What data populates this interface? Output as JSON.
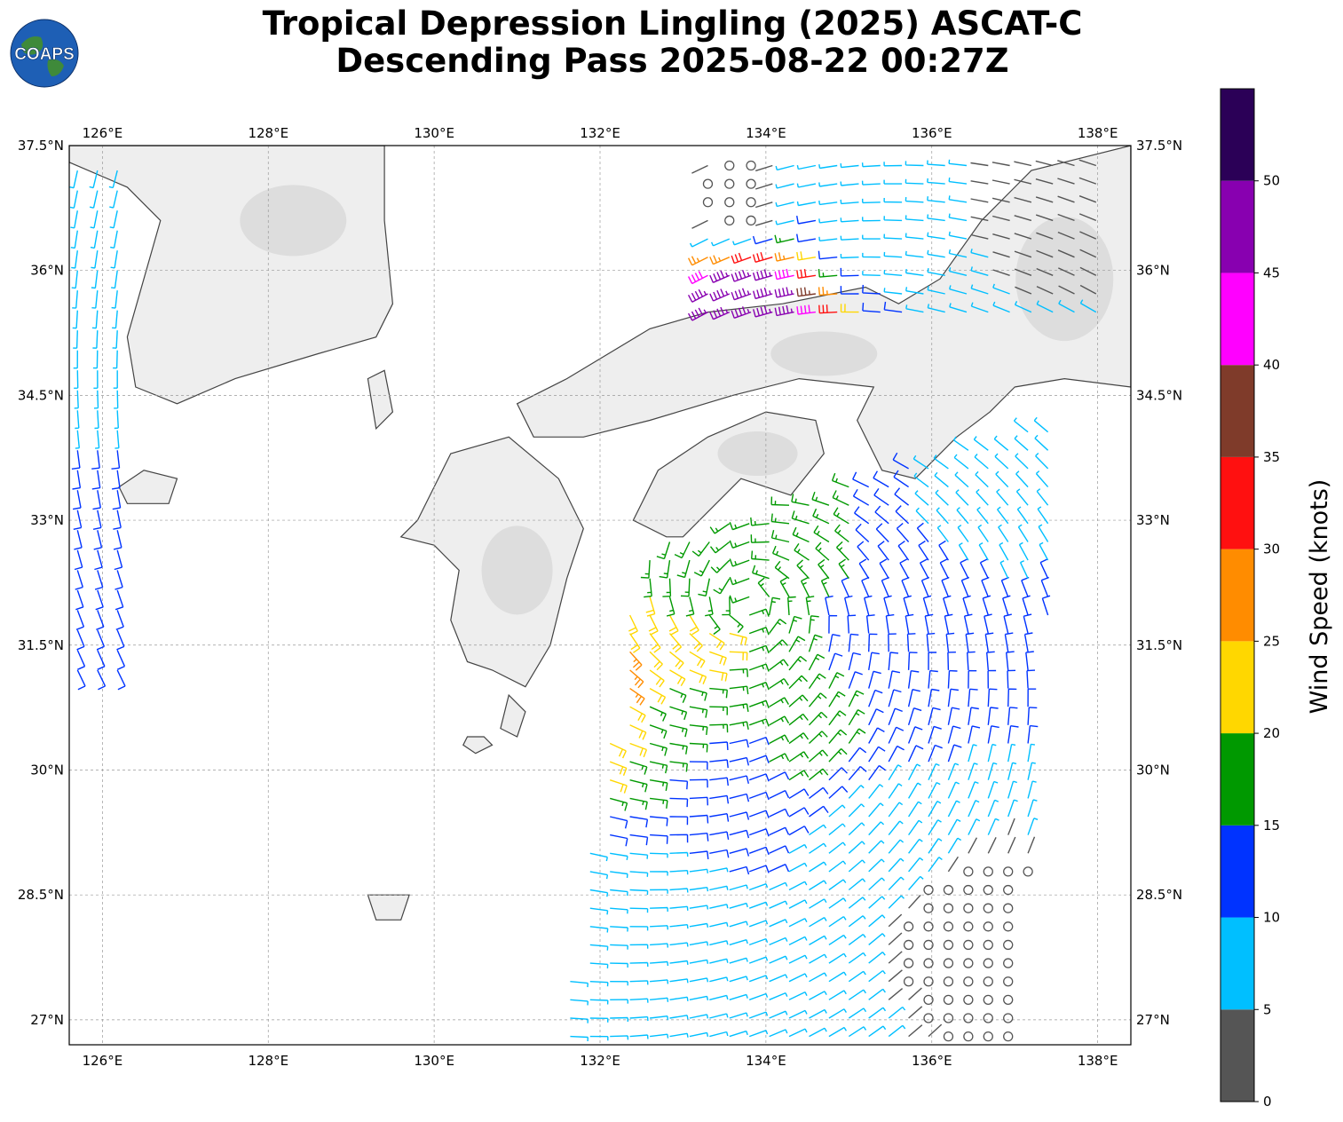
{
  "title": {
    "line1": "Tropical Depression Lingling (2025) ASCAT-C",
    "line2": "Descending Pass 2025-08-22 00:27Z"
  },
  "logo": {
    "text": "COAPS",
    "icon": "globe-icon"
  },
  "map": {
    "lon_range": [
      125.6,
      138.4
    ],
    "lat_range": [
      26.7,
      37.5
    ],
    "lon_ticks": [
      {
        "value": 126,
        "label": "126°E"
      },
      {
        "value": 128,
        "label": "128°E"
      },
      {
        "value": 130,
        "label": "130°E"
      },
      {
        "value": 132,
        "label": "132°E"
      },
      {
        "value": 134,
        "label": "134°E"
      },
      {
        "value": 136,
        "label": "136°E"
      },
      {
        "value": 138,
        "label": "138°E"
      }
    ],
    "lat_ticks": [
      {
        "value": 37.5,
        "label": "37.5°N"
      },
      {
        "value": 36,
        "label": "36°N"
      },
      {
        "value": 34.5,
        "label": "34.5°N"
      },
      {
        "value": 33,
        "label": "33°N"
      },
      {
        "value": 31.5,
        "label": "31.5°N"
      },
      {
        "value": 30,
        "label": "30°N"
      },
      {
        "value": 28.5,
        "label": "28.5°N"
      },
      {
        "value": 27,
        "label": "27°N"
      }
    ],
    "gridlines": true,
    "land_color": "#eeeeee",
    "coast_color": "#444444"
  },
  "colorbar": {
    "label": "Wind Speed (knots)",
    "bins": [
      {
        "min": 0,
        "max": 5,
        "color": "#555555"
      },
      {
        "min": 5,
        "max": 10,
        "color": "#00bfff"
      },
      {
        "min": 10,
        "max": 15,
        "color": "#0033ff"
      },
      {
        "min": 15,
        "max": 20,
        "color": "#009900"
      },
      {
        "min": 20,
        "max": 25,
        "color": "#ffd700"
      },
      {
        "min": 25,
        "max": 30,
        "color": "#ff8c00"
      },
      {
        "min": 30,
        "max": 35,
        "color": "#ff1010"
      },
      {
        "min": 35,
        "max": 40,
        "color": "#7f3b2a"
      },
      {
        "min": 40,
        "max": 45,
        "color": "#ff00ff"
      },
      {
        "min": 45,
        "max": 50,
        "color": "#8800b0"
      },
      {
        "min": 50,
        "max": 55,
        "color": "#2b0057"
      }
    ],
    "tick_labels": [
      "0",
      "5",
      "10",
      "15",
      "20",
      "25",
      "30",
      "35",
      "40",
      "45",
      "50"
    ]
  },
  "chart_data": {
    "type": "scatter",
    "marker": "wind-barb",
    "swath": {
      "corners_lon_lat": [
        [
          132.5,
          32.7
        ],
        [
          137.6,
          34.2
        ],
        [
          137.0,
          26.8
        ],
        [
          131.5,
          26.8
        ]
      ]
    },
    "wind_field": [
      {
        "lon": 132.5,
        "lat": 31.8,
        "speed_kt": 23
      },
      {
        "lon": 132.2,
        "lat": 31.2,
        "speed_kt": 27
      },
      {
        "lon": 132.0,
        "lat": 30.8,
        "speed_kt": 26
      },
      {
        "lon": 132.8,
        "lat": 31.4,
        "speed_kt": 22
      },
      {
        "lon": 133.0,
        "lat": 32.3,
        "speed_kt": 18
      },
      {
        "lon": 132.8,
        "lat": 30.6,
        "speed_kt": 17
      },
      {
        "lon": 134.6,
        "lat": 32.5,
        "speed_kt": 16
      },
      {
        "lon": 134.4,
        "lat": 30.3,
        "speed_kt": 16
      },
      {
        "lon": 133.5,
        "lat": 29.8,
        "speed_kt": 12
      },
      {
        "lon": 135.5,
        "lat": 31.8,
        "speed_kt": 12
      },
      {
        "lon": 136.5,
        "lat": 33.2,
        "speed_kt": 9
      },
      {
        "lon": 132.5,
        "lat": 28.5,
        "speed_kt": 8
      },
      {
        "lon": 135.2,
        "lat": 29.0,
        "speed_kt": 7
      },
      {
        "lon": 136.3,
        "lat": 28.0,
        "speed_kt": 2
      },
      {
        "lon": 134.5,
        "lat": 27.3,
        "speed_kt": 6
      },
      {
        "lon": 133.7,
        "lat": 36.8,
        "speed_kt": 3
      },
      {
        "lon": 135.5,
        "lat": 36.6,
        "speed_kt": 7
      },
      {
        "lon": 137.3,
        "lat": 36.8,
        "speed_kt": 4
      },
      {
        "lon": 133.8,
        "lat": 35.6,
        "speed_kt": 48
      },
      {
        "lon": 126.0,
        "lat": 32.5,
        "speed_kt": 11
      },
      {
        "lon": 126.1,
        "lat": 36.0,
        "speed_kt": 7
      }
    ]
  }
}
